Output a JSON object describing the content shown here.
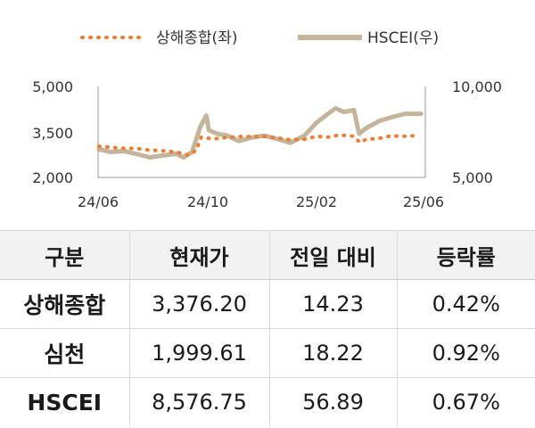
{
  "chart_data": {
    "type": "line",
    "legend": {
      "placement": "top-center"
    },
    "x_tick_labels": [
      "24/06",
      "24/10",
      "25/02",
      "25/06"
    ],
    "x_range": [
      "2024-05-31",
      "2025-06-25"
    ],
    "y_left": {
      "ticks": [
        "5,000",
        "3,500",
        "2,000"
      ],
      "ylim": [
        2000,
        5000
      ]
    },
    "y_right": {
      "ticks": [
        "10,000",
        "5,000"
      ],
      "ylim": [
        5000,
        10000
      ]
    },
    "grid": false,
    "series": [
      {
        "name": "상해종합(좌)",
        "axis": "left",
        "style": "dotted",
        "color": "#ED7D31",
        "points": [
          [
            "2024-06-01",
            3030
          ],
          [
            "2024-06-15",
            2990
          ],
          [
            "2024-07-01",
            2960
          ],
          [
            "2024-07-15",
            2960
          ],
          [
            "2024-08-01",
            2900
          ],
          [
            "2024-08-15",
            2880
          ],
          [
            "2024-09-01",
            2840
          ],
          [
            "2024-09-15",
            2740
          ],
          [
            "2024-09-25",
            2890
          ],
          [
            "2024-10-01",
            3330
          ],
          [
            "2024-10-15",
            3270
          ],
          [
            "2024-11-01",
            3320
          ],
          [
            "2024-11-15",
            3350
          ],
          [
            "2024-12-01",
            3350
          ],
          [
            "2024-12-15",
            3350
          ],
          [
            "2025-01-01",
            3300
          ],
          [
            "2025-01-15",
            3240
          ],
          [
            "2025-02-01",
            3260
          ],
          [
            "2025-02-15",
            3360
          ],
          [
            "2025-03-01",
            3330
          ],
          [
            "2025-03-15",
            3400
          ],
          [
            "2025-04-01",
            3360
          ],
          [
            "2025-04-08",
            3150
          ],
          [
            "2025-04-15",
            3250
          ],
          [
            "2025-05-01",
            3290
          ],
          [
            "2025-05-15",
            3370
          ],
          [
            "2025-06-01",
            3360
          ],
          [
            "2025-06-15",
            3380
          ]
        ]
      },
      {
        "name": "HSCEI(우)",
        "axis": "right",
        "style": "solid",
        "color": "#C4B49A",
        "points": [
          [
            "2024-06-01",
            6550
          ],
          [
            "2024-06-15",
            6400
          ],
          [
            "2024-07-01",
            6450
          ],
          [
            "2024-07-15",
            6300
          ],
          [
            "2024-08-01",
            6100
          ],
          [
            "2024-08-15",
            6200
          ],
          [
            "2024-09-01",
            6300
          ],
          [
            "2024-09-10",
            6100
          ],
          [
            "2024-09-20",
            6400
          ],
          [
            "2024-09-30",
            7800
          ],
          [
            "2024-10-07",
            8400
          ],
          [
            "2024-10-10",
            7600
          ],
          [
            "2024-10-20",
            7400
          ],
          [
            "2024-11-01",
            7300
          ],
          [
            "2024-11-15",
            7000
          ],
          [
            "2024-12-01",
            7200
          ],
          [
            "2024-12-15",
            7300
          ],
          [
            "2025-01-01",
            7100
          ],
          [
            "2025-01-15",
            6900
          ],
          [
            "2025-02-01",
            7300
          ],
          [
            "2025-02-15",
            8000
          ],
          [
            "2025-03-01",
            8500
          ],
          [
            "2025-03-10",
            8800
          ],
          [
            "2025-03-20",
            8600
          ],
          [
            "2025-04-01",
            8700
          ],
          [
            "2025-04-07",
            7400
          ],
          [
            "2025-04-15",
            7700
          ],
          [
            "2025-05-01",
            8100
          ],
          [
            "2025-05-15",
            8300
          ],
          [
            "2025-06-01",
            8500
          ],
          [
            "2025-06-20",
            8500
          ]
        ]
      }
    ]
  },
  "table": {
    "headers": [
      "구분",
      "현재가",
      "전일 대비",
      "등락률"
    ],
    "rows": [
      [
        "상해종합",
        "3,376.20",
        "14.23",
        "0.42%"
      ],
      [
        "심천",
        "1,999.61",
        "18.22",
        "0.92%"
      ],
      [
        "HSCEI",
        "8,576.75",
        "56.89",
        "0.67%"
      ]
    ]
  }
}
